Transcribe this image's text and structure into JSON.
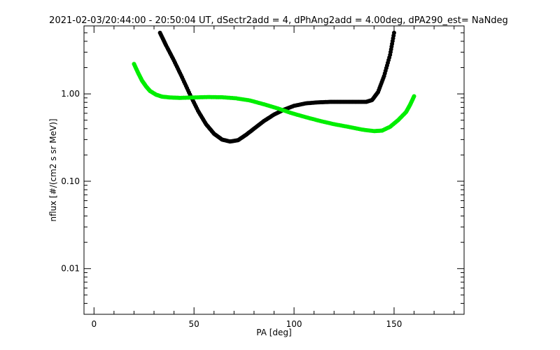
{
  "chart_data": {
    "type": "scatter",
    "title": "2021-02-03/20:44:00 - 20:50:04 UT, dSectr2add = 4, dPhAng2add = 4.00deg, dPA290_est=   NaNdeg",
    "xlabel": "PA [deg]",
    "ylabel": "nflux [#/(cm2 s sr MeV)]",
    "xlim": [
      -5,
      185
    ],
    "ylim": [
      0.003,
      6
    ],
    "yscale": "log",
    "x_ticks": [
      0,
      50,
      100,
      150
    ],
    "x_tick_labels": [
      "0",
      "50",
      "100",
      "150"
    ],
    "y_ticks": [
      0.01,
      0.1,
      1.0
    ],
    "y_tick_labels": [
      "0.01",
      "0.10",
      "1.00"
    ],
    "grid": false,
    "series": [
      {
        "color": "#000000",
        "x": [
          33,
          36,
          40,
          44,
          48,
          52,
          56,
          60,
          64,
          68,
          72,
          76,
          80,
          85,
          90,
          95,
          100,
          106,
          112,
          118,
          124,
          130,
          136,
          139,
          142,
          145,
          148,
          150
        ],
        "y": [
          5.0,
          3.6,
          2.4,
          1.55,
          0.98,
          0.64,
          0.45,
          0.35,
          0.3,
          0.285,
          0.295,
          0.34,
          0.4,
          0.49,
          0.58,
          0.66,
          0.73,
          0.78,
          0.8,
          0.81,
          0.81,
          0.81,
          0.81,
          0.85,
          1.05,
          1.6,
          2.8,
          5.0
        ]
      },
      {
        "color": "#00ee00",
        "x": [
          20,
          22,
          24,
          26,
          28,
          31,
          34,
          38,
          43,
          50,
          57,
          64,
          71,
          78,
          85,
          92,
          99,
          106,
          113,
          120,
          127,
          134,
          140,
          144,
          148,
          152,
          156,
          158,
          160
        ],
        "y": [
          2.2,
          1.75,
          1.42,
          1.22,
          1.08,
          0.98,
          0.93,
          0.91,
          0.9,
          0.91,
          0.92,
          0.915,
          0.89,
          0.84,
          0.76,
          0.68,
          0.6,
          0.54,
          0.49,
          0.45,
          0.42,
          0.39,
          0.375,
          0.38,
          0.42,
          0.5,
          0.62,
          0.75,
          0.94
        ]
      }
    ]
  }
}
